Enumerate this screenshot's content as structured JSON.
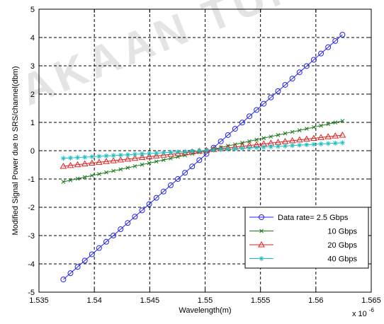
{
  "chart_data": {
    "type": "line",
    "title": "",
    "xlabel": "Wavelength(m)",
    "ylabel": "Modified Signal Power due to SRS/channel(dbm)",
    "x_multiplier_label": "x 10",
    "x_multiplier_exponent": "-6",
    "xlim": [
      1.535,
      1.565
    ],
    "ylim": [
      -5,
      5
    ],
    "xticks": [
      1.535,
      1.54,
      1.545,
      1.55,
      1.555,
      1.56,
      1.565
    ],
    "xtick_labels": [
      "1.535",
      "1.54",
      "1.545",
      "1.55",
      "1.555",
      "1.56",
      "1.565"
    ],
    "yticks": [
      -5,
      -4,
      -3,
      -2,
      -1,
      0,
      1,
      2,
      3,
      4,
      5
    ],
    "ytick_labels": [
      "-5",
      "-4",
      "-3",
      "-2",
      "-1",
      "0",
      "1",
      "2",
      "3",
      "4",
      "5"
    ],
    "grid": true,
    "grid_style": "dashed",
    "legend_placement": "bottom-right",
    "x_start": 1.5372,
    "x_end": 1.5624,
    "num_points": 40,
    "series": [
      {
        "name": "Data rate= 2.5 Gbps",
        "color": "#2424ee",
        "marker": "circle",
        "y_start": -4.55,
        "y_end": 4.1
      },
      {
        "name": "10 Gbps",
        "color": "#1a7a1a",
        "marker": "x",
        "y_start": -1.1,
        "y_end": 1.05
      },
      {
        "name": "20 Gbps",
        "color": "#e02020",
        "marker": "triangle",
        "y_start": -0.55,
        "y_end": 0.55
      },
      {
        "name": "40 Gbps",
        "color": "#20c0c0",
        "marker": "star",
        "y_start": -0.27,
        "y_end": 0.28
      }
    ]
  },
  "watermark": {
    "text": "AKAAN TUNKU",
    "color": "#e4e4e4"
  }
}
